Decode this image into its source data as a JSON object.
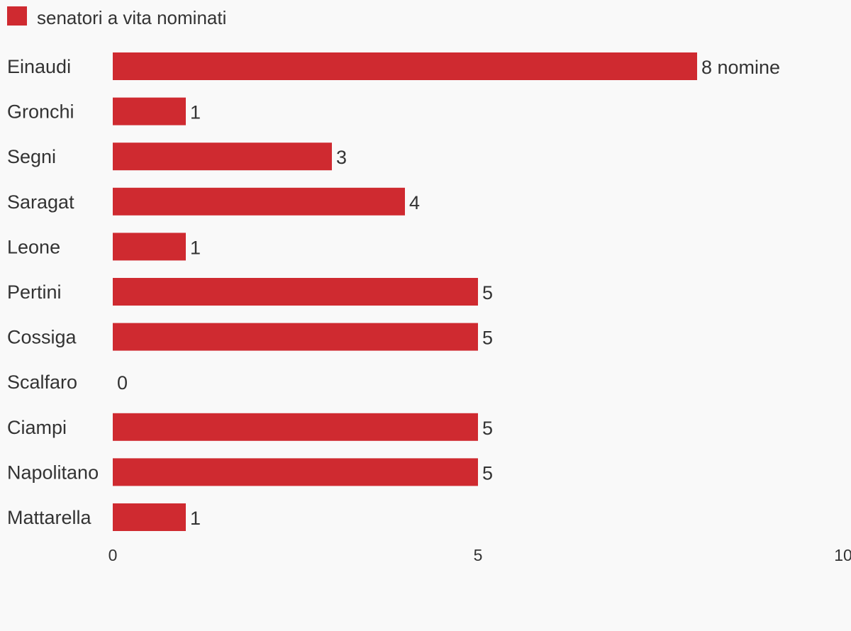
{
  "chart_data": {
    "type": "bar",
    "orientation": "horizontal",
    "categories": [
      "Einaudi",
      "Gronchi",
      "Segni",
      "Saragat",
      "Leone",
      "Pertini",
      "Cossiga",
      "Scalfaro",
      "Ciampi",
      "Napolitano",
      "Mattarella"
    ],
    "series": [
      {
        "name": "senatori a vita nominati",
        "values": [
          8,
          1,
          3,
          4,
          1,
          5,
          5,
          0,
          5,
          5,
          1
        ]
      }
    ],
    "value_labels": [
      "8 nomine",
      "1",
      "3",
      "4",
      "1",
      "5",
      "5",
      "0",
      "5",
      "5",
      "1"
    ],
    "xlim": [
      0,
      10
    ],
    "xticks": [
      "0",
      "5",
      "10"
    ],
    "legend_position": "top-left",
    "grid": false,
    "colors": {
      "bar": "#cf2a30",
      "text": "#333333",
      "background": "#f9f9f9"
    }
  }
}
